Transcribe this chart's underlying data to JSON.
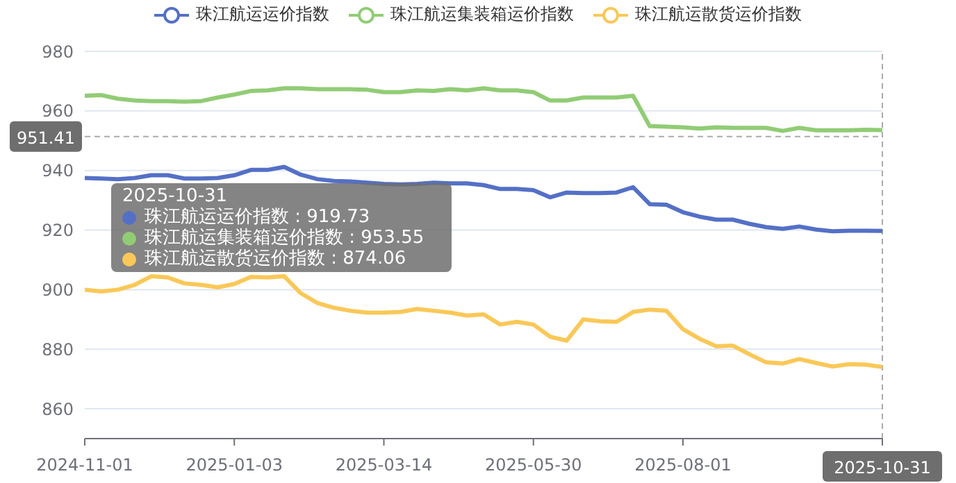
{
  "chart_data": {
    "type": "line",
    "categories": [
      "2024-11-01",
      null,
      null,
      null,
      null,
      null,
      null,
      null,
      null,
      "2025-01-03",
      null,
      null,
      null,
      null,
      null,
      null,
      null,
      null,
      "2025-03-14",
      null,
      null,
      null,
      null,
      null,
      null,
      null,
      null,
      "2025-05-30",
      null,
      null,
      null,
      null,
      null,
      null,
      null,
      null,
      "2025-08-01",
      null,
      null,
      null,
      null,
      null,
      null,
      null,
      null,
      null,
      null,
      null,
      "2025-10-31"
    ],
    "series": [
      {
        "name": "珠江航运运价指数",
        "color": "#5470c6",
        "values": [
          937.5,
          937.3,
          937.1,
          937.5,
          938.4,
          938.4,
          937.3,
          937.3,
          937.5,
          938.4,
          940.2,
          940.2,
          941.2,
          938.6,
          937.1,
          936.5,
          936.3,
          935.9,
          935.5,
          935.3,
          935.5,
          935.9,
          935.7,
          935.7,
          935.1,
          933.8,
          933.8,
          933.4,
          931.0,
          932.6,
          932.4,
          932.4,
          932.6,
          934.4,
          928.7,
          928.5,
          926,
          924.5,
          923.5,
          923.5,
          922.1,
          921,
          920.4,
          921.2,
          920.2,
          919.6,
          919.8,
          919.8,
          919.73
        ]
      },
      {
        "name": "珠江航运集装箱运价指数",
        "color": "#91cc75",
        "values": [
          965.1,
          965.3,
          964.1,
          963.5,
          963.3,
          963.3,
          963.1,
          963.3,
          964.5,
          965.5,
          966.7,
          966.9,
          967.6,
          967.6,
          967.3,
          967.3,
          967.3,
          967.1,
          966.3,
          966.3,
          966.9,
          966.7,
          967.3,
          966.9,
          967.6,
          966.9,
          966.9,
          966.3,
          963.5,
          963.5,
          964.5,
          964.5,
          964.5,
          965.1,
          954.9,
          954.7,
          954.5,
          954.1,
          954.5,
          954.3,
          954.3,
          954.3,
          953.3,
          954.3,
          953.5,
          953.5,
          953.5,
          953.7,
          953.55
        ]
      },
      {
        "name": "珠江航运散货运价指数",
        "color": "#fac858",
        "values": [
          900,
          899.4,
          900,
          901.6,
          904.5,
          904.1,
          902.1,
          901.6,
          900.8,
          901.9,
          904.3,
          904.1,
          904.5,
          898.8,
          895.5,
          893.9,
          892.9,
          892.3,
          892.3,
          892.5,
          893.5,
          892.9,
          892.3,
          891.3,
          891.7,
          888.3,
          889.2,
          888.3,
          884.2,
          882.9,
          890,
          889.4,
          889.2,
          892.5,
          893.3,
          892.9,
          886.7,
          883.5,
          881,
          881.2,
          878.3,
          875.6,
          875.2,
          876.7,
          875.4,
          874.2,
          875,
          874.8,
          874.06
        ]
      }
    ],
    "ylim": [
      850,
      980
    ],
    "yticks": [
      860,
      880,
      900,
      920,
      940,
      960,
      980
    ],
    "grid": "y",
    "legend": "top",
    "marker": "none",
    "line_style": "solid",
    "ref_lines": [
      {
        "axis": "y",
        "value": 951.41,
        "label": "951.41"
      },
      {
        "axis": "x",
        "value": "2025-10-31"
      }
    ],
    "annotations": [
      "2025-10-31",
      "珠江航运运价指数 : 919.73",
      "珠江航运集装箱运价指数 : 953.55",
      "珠江航运散货运价指数 : 874.06"
    ]
  }
}
